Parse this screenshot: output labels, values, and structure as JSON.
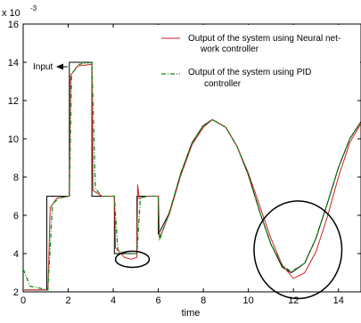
{
  "chart_data": {
    "type": "line",
    "title": "",
    "xlabel": "time",
    "ylabel": "",
    "y_scale_label": "x 10",
    "y_scale_exp": "-3",
    "xlim": [
      0,
      15
    ],
    "ylim": [
      2,
      16
    ],
    "xticks": [
      0,
      2,
      4,
      6,
      8,
      10,
      12,
      14
    ],
    "yticks": [
      2,
      4,
      6,
      8,
      10,
      12,
      14,
      16
    ],
    "grid": false,
    "legend_position": "top-right",
    "series": [
      {
        "name": "Input",
        "color": "#000000",
        "style": "solid",
        "points": [
          [
            0,
            2.1
          ],
          [
            1.05,
            2.1
          ],
          [
            1.05,
            7
          ],
          [
            2.05,
            7
          ],
          [
            2.05,
            14
          ],
          [
            3.05,
            14
          ],
          [
            3.05,
            7
          ],
          [
            4.05,
            7
          ],
          [
            4.05,
            4
          ],
          [
            5.05,
            4
          ],
          [
            5.05,
            7
          ],
          [
            6,
            7
          ],
          [
            6,
            5
          ],
          [
            6.5,
            6.15
          ],
          [
            7,
            8.2
          ],
          [
            7.5,
            9.8
          ],
          [
            8,
            10.7
          ],
          [
            8.4,
            11
          ],
          [
            9,
            10.6
          ],
          [
            9.5,
            9.6
          ],
          [
            10,
            8.1
          ],
          [
            10.5,
            6.2
          ],
          [
            11,
            4.5
          ],
          [
            11.5,
            3.3
          ],
          [
            11.9,
            3
          ],
          [
            12.5,
            3.5
          ],
          [
            13,
            4.8
          ],
          [
            13.5,
            6.6
          ],
          [
            14,
            8.5
          ],
          [
            14.5,
            10
          ],
          [
            15,
            10.9
          ]
        ]
      },
      {
        "name": "Output of the system using Neural network controller",
        "color": "#cc2222",
        "style": "solid",
        "points": [
          [
            0,
            2.1
          ],
          [
            1.1,
            2.1
          ],
          [
            1.2,
            6.4
          ],
          [
            1.5,
            6.9
          ],
          [
            2.05,
            7
          ],
          [
            2.1,
            13.3
          ],
          [
            2.4,
            13.8
          ],
          [
            3.05,
            13.9
          ],
          [
            3.1,
            7.3
          ],
          [
            3.5,
            7
          ],
          [
            4.05,
            7
          ],
          [
            4.1,
            4.3
          ],
          [
            4.5,
            3.8
          ],
          [
            4.8,
            3.7
          ],
          [
            5.05,
            3.8
          ],
          [
            5.08,
            7.6
          ],
          [
            5.15,
            6.9
          ],
          [
            5.5,
            7
          ],
          [
            6,
            7
          ],
          [
            6.05,
            4.8
          ],
          [
            6.5,
            6.1
          ],
          [
            7,
            8.1
          ],
          [
            7.5,
            9.7
          ],
          [
            8,
            10.6
          ],
          [
            8.4,
            11
          ],
          [
            9,
            10.6
          ],
          [
            9.5,
            9.6
          ],
          [
            10,
            8.2
          ],
          [
            10.5,
            6.5
          ],
          [
            11,
            4.8
          ],
          [
            11.5,
            3.4
          ],
          [
            12,
            2.7
          ],
          [
            12.5,
            3
          ],
          [
            13,
            4.1
          ],
          [
            13.5,
            5.9
          ],
          [
            14,
            8
          ],
          [
            14.5,
            9.8
          ],
          [
            15,
            10.8
          ]
        ]
      },
      {
        "name": "Output of the system using PID controller",
        "color": "#118811",
        "style": "dashdot",
        "points": [
          [
            0,
            3.2
          ],
          [
            0.3,
            2.3
          ],
          [
            1.1,
            2.1
          ],
          [
            1.3,
            6.6
          ],
          [
            1.6,
            6.9
          ],
          [
            2.05,
            7
          ],
          [
            2.15,
            13.4
          ],
          [
            2.5,
            13.9
          ],
          [
            3.05,
            14
          ],
          [
            3.2,
            7.4
          ],
          [
            3.5,
            7
          ],
          [
            4.05,
            7
          ],
          [
            4.2,
            4.2
          ],
          [
            4.6,
            4
          ],
          [
            5.05,
            4
          ],
          [
            5.2,
            6.9
          ],
          [
            5.5,
            7
          ],
          [
            6,
            7
          ],
          [
            6.05,
            4.7
          ],
          [
            6.5,
            6.2
          ],
          [
            7,
            8.2
          ],
          [
            7.5,
            9.8
          ],
          [
            8,
            10.7
          ],
          [
            8.4,
            11
          ],
          [
            9,
            10.6
          ],
          [
            9.5,
            9.6
          ],
          [
            10,
            8.1
          ],
          [
            10.5,
            6.2
          ],
          [
            11,
            4.5
          ],
          [
            11.5,
            3.4
          ],
          [
            11.9,
            3.05
          ],
          [
            12.5,
            3.5
          ],
          [
            13,
            4.8
          ],
          [
            13.5,
            6.6
          ],
          [
            14,
            8.5
          ],
          [
            14.5,
            10
          ],
          [
            15,
            10.9
          ]
        ]
      }
    ],
    "annotations": {
      "input_label": "Input",
      "ellipse_small_data": {
        "cx": 4.85,
        "cy": 3.7,
        "rx": 0.75,
        "ry": 0.42
      },
      "circle_large_data": {
        "cx": 12.2,
        "cy": 4.2,
        "rx": 1.95,
        "ry": 2.55
      }
    },
    "legend": [
      {
        "line1": "Output of the system using Neural net-",
        "line2": "work controller"
      },
      {
        "line1": "Output of the system using PID",
        "line2": "controller"
      }
    ]
  }
}
